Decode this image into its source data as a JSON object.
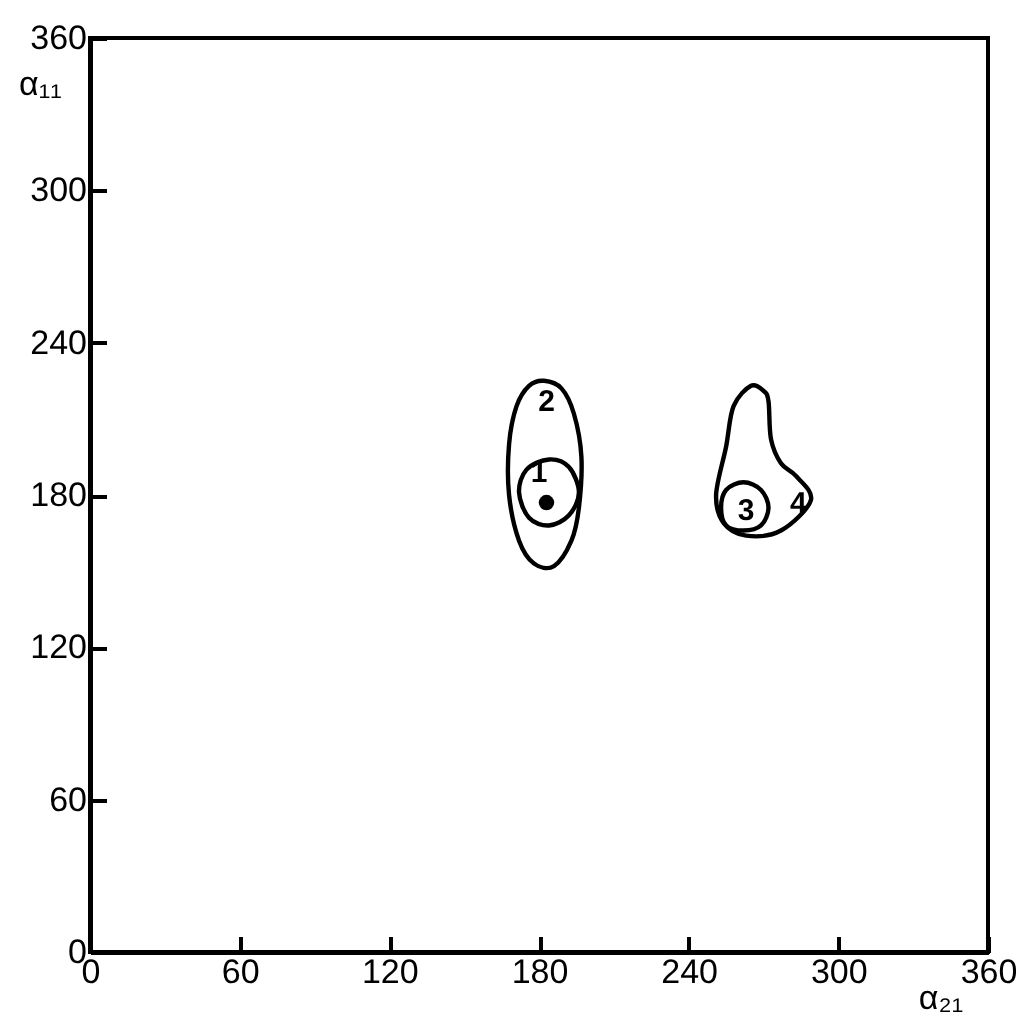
{
  "chart_data": {
    "type": "scatter",
    "xlabel": "α₂₁",
    "ylabel": "α₁₁",
    "xlim": [
      0,
      360
    ],
    "ylim": [
      0,
      360
    ],
    "xticks": [
      0,
      60,
      120,
      180,
      240,
      300,
      360
    ],
    "yticks": [
      0,
      60,
      120,
      180,
      240,
      300,
      360
    ],
    "grid": false,
    "marker": "circle",
    "series": [
      {
        "color": "#000000",
        "x": [
          183
        ],
        "values": [
          177
        ]
      }
    ],
    "annotations": [
      "2",
      "1",
      "3",
      "4"
    ]
  }
}
